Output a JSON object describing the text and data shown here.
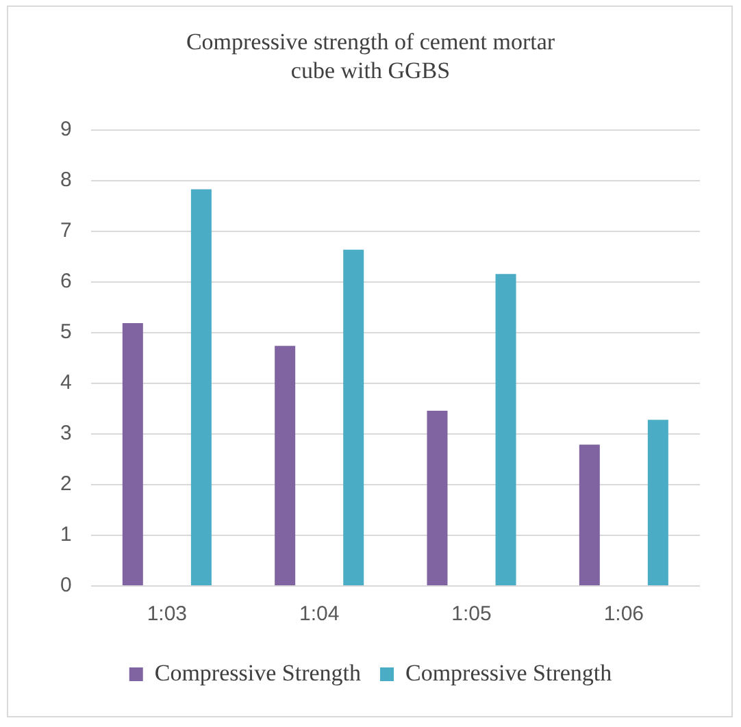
{
  "chart_data": {
    "type": "bar",
    "title": "Compressive strength of cement mortar cube with GGBS",
    "categories": [
      "1:03",
      "1:04",
      "1:05",
      "1:06"
    ],
    "series": [
      {
        "name": "Compressive Strength",
        "color": "#8064a2",
        "values": [
          5.19,
          4.74,
          3.46,
          2.79
        ]
      },
      {
        "name": "Compressive Strength",
        "color": "#4bacc6",
        "values": [
          7.83,
          6.64,
          6.16,
          3.28
        ]
      }
    ],
    "ylim": [
      0,
      9
    ],
    "yticks": [
      0,
      1,
      2,
      3,
      4,
      5,
      6,
      7,
      8,
      9
    ],
    "grid": "y",
    "legend": "bottom"
  }
}
